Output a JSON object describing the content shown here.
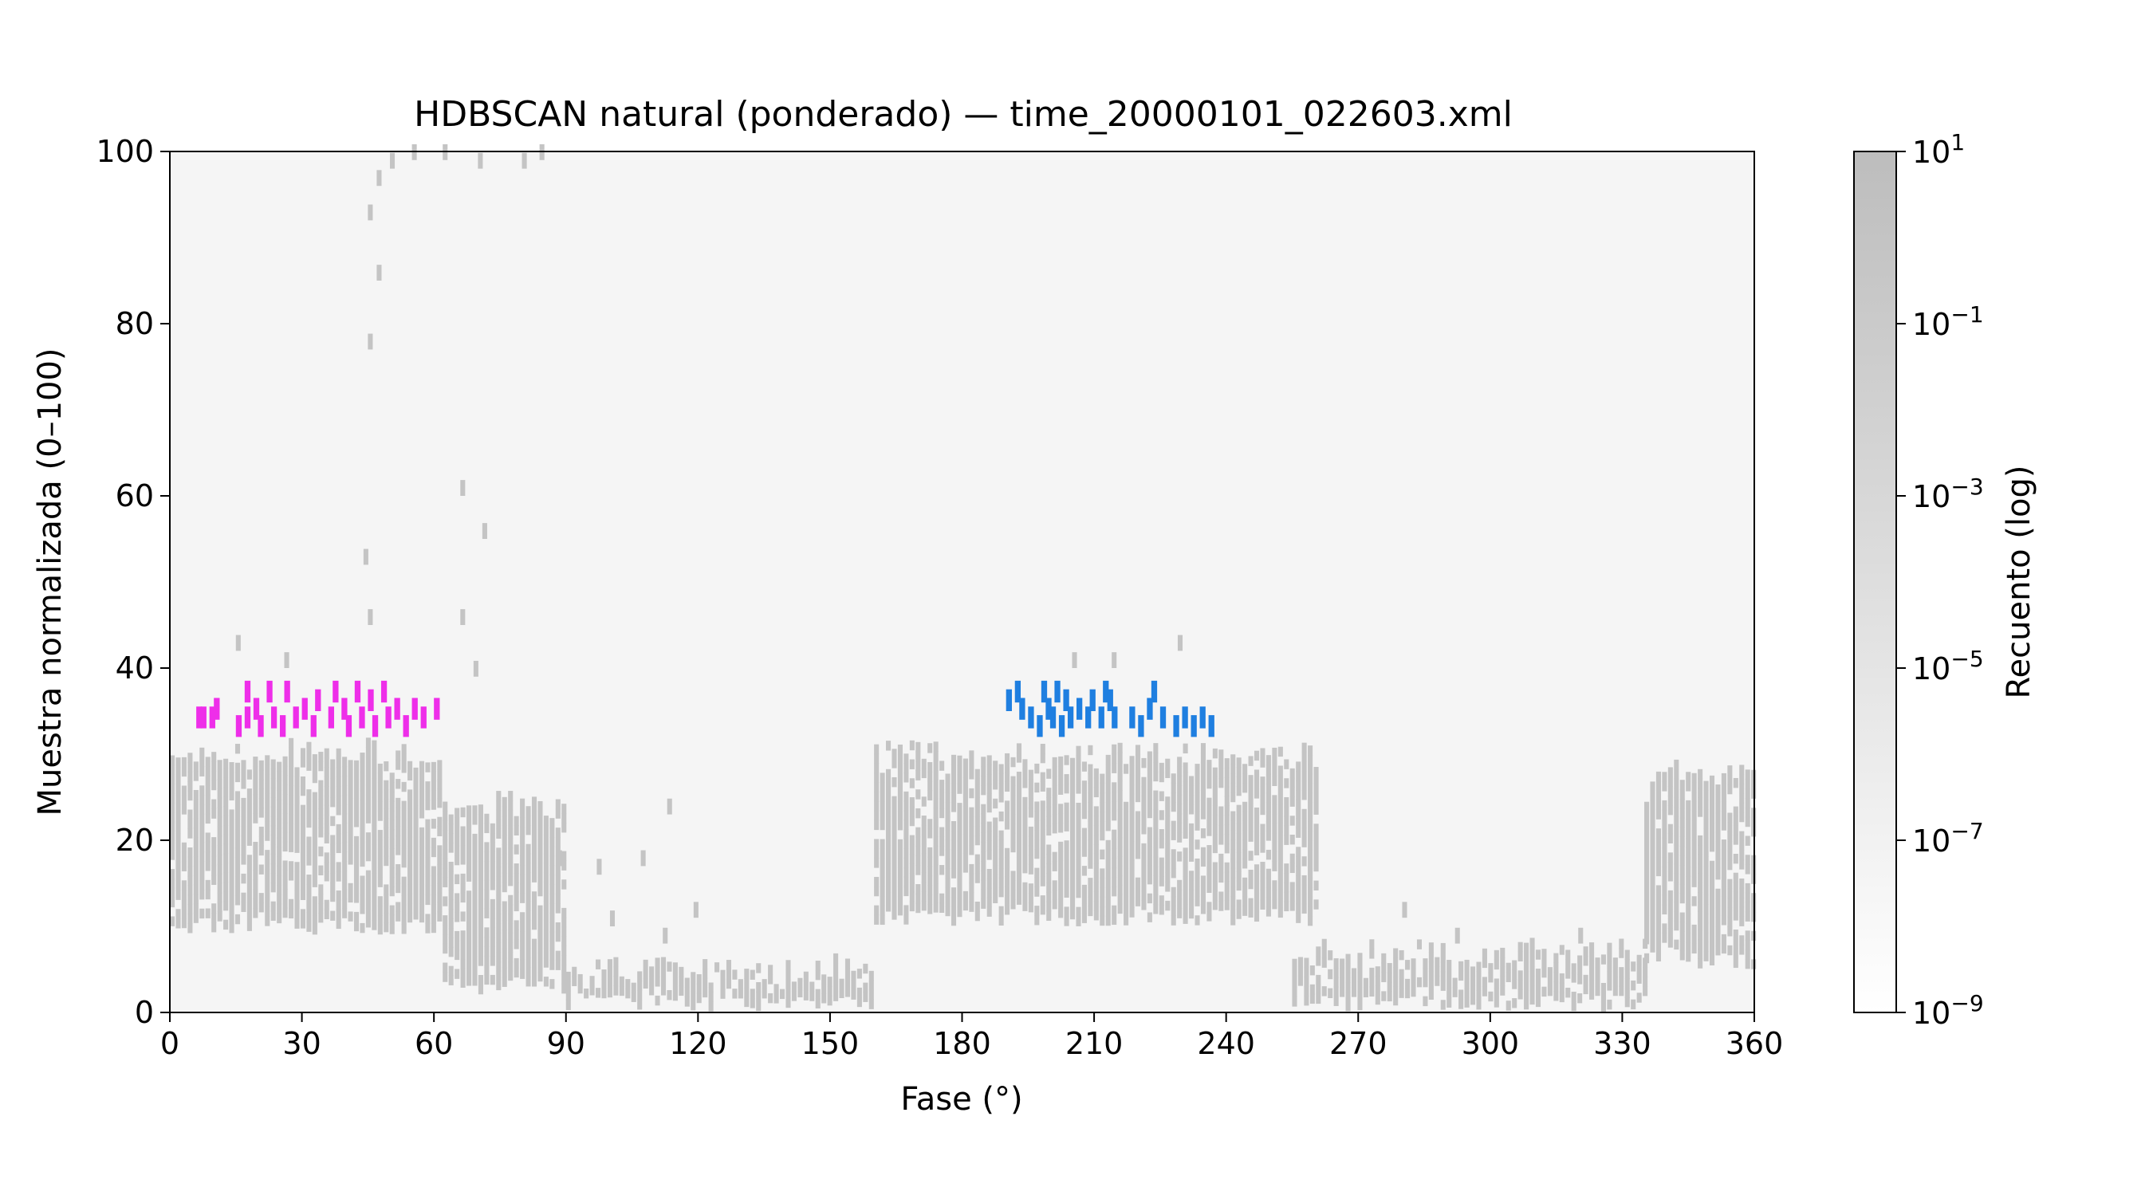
{
  "chart_data": {
    "type": "heatmap",
    "title": "HDBSCAN natural (ponderado) — time_20000101_022603.xml",
    "xlabel": "Fase (°)",
    "ylabel": "Muestra normalizada (0–100)",
    "xlim": [
      0,
      360
    ],
    "ylim": [
      0,
      100
    ],
    "xticks": [
      0,
      30,
      60,
      90,
      120,
      150,
      180,
      210,
      240,
      270,
      300,
      330,
      360
    ],
    "yticks": [
      0,
      20,
      40,
      60,
      80,
      100
    ],
    "grid": false,
    "background_color": "#f5f5f5",
    "cell_color": "#c4c4c4",
    "colorbar": {
      "label": "Recuento (log)",
      "scale": "log",
      "range": [
        1e-09,
        10
      ],
      "tick_exponents": [
        1,
        -1,
        -3,
        -5,
        -7,
        -9
      ],
      "tick_base": "10",
      "color_low": "#ffffff",
      "color_high": "#bdbdbd"
    },
    "background_density": {
      "description_free_bands": [
        {
          "x_from": 0,
          "x_to": 62,
          "y_from": 9,
          "y_to": 31
        },
        {
          "x_from": 62,
          "x_to": 90,
          "y_from": 2,
          "y_to": 25
        },
        {
          "x_from": 90,
          "x_to": 160,
          "y_from": 0,
          "y_to": 6
        },
        {
          "x_from": 160,
          "x_to": 260,
          "y_from": 10,
          "y_to": 31
        },
        {
          "x_from": 255,
          "x_to": 335,
          "y_from": 0,
          "y_to": 8
        },
        {
          "x_from": 335,
          "x_to": 360,
          "y_from": 5,
          "y_to": 29
        }
      ],
      "outliers": [
        {
          "x": 45,
          "y": 77
        },
        {
          "x": 45,
          "y": 92
        },
        {
          "x": 47,
          "y": 85
        },
        {
          "x": 47,
          "y": 96
        },
        {
          "x": 50,
          "y": 98
        },
        {
          "x": 55,
          "y": 99
        },
        {
          "x": 62,
          "y": 99
        },
        {
          "x": 70,
          "y": 98
        },
        {
          "x": 80,
          "y": 98
        },
        {
          "x": 84,
          "y": 99
        },
        {
          "x": 66,
          "y": 60
        },
        {
          "x": 71,
          "y": 55
        },
        {
          "x": 44,
          "y": 52
        },
        {
          "x": 45,
          "y": 45
        },
        {
          "x": 66,
          "y": 45
        },
        {
          "x": 69,
          "y": 39
        },
        {
          "x": 15,
          "y": 42
        },
        {
          "x": 26,
          "y": 40
        },
        {
          "x": 205,
          "y": 40
        },
        {
          "x": 214,
          "y": 40
        },
        {
          "x": 229,
          "y": 42
        },
        {
          "x": 113,
          "y": 23
        },
        {
          "x": 88,
          "y": 17
        },
        {
          "x": 97,
          "y": 16
        },
        {
          "x": 107,
          "y": 17
        },
        {
          "x": 119,
          "y": 11
        },
        {
          "x": 280,
          "y": 11
        },
        {
          "x": 292,
          "y": 8
        },
        {
          "x": 320,
          "y": 8
        },
        {
          "x": 100,
          "y": 10
        },
        {
          "x": 112,
          "y": 8
        }
      ]
    },
    "clusters": [
      {
        "color": "#ee2ee9",
        "points": [
          {
            "x": 6,
            "y": 33
          },
          {
            "x": 7,
            "y": 33
          },
          {
            "x": 9,
            "y": 33
          },
          {
            "x": 10,
            "y": 34
          },
          {
            "x": 15,
            "y": 32
          },
          {
            "x": 17,
            "y": 33
          },
          {
            "x": 17,
            "y": 36
          },
          {
            "x": 19,
            "y": 34
          },
          {
            "x": 20,
            "y": 32
          },
          {
            "x": 22,
            "y": 36
          },
          {
            "x": 23,
            "y": 33
          },
          {
            "x": 25,
            "y": 32
          },
          {
            "x": 26,
            "y": 36
          },
          {
            "x": 28,
            "y": 33
          },
          {
            "x": 30,
            "y": 34
          },
          {
            "x": 32,
            "y": 32
          },
          {
            "x": 33,
            "y": 35
          },
          {
            "x": 36,
            "y": 33
          },
          {
            "x": 37,
            "y": 36
          },
          {
            "x": 39,
            "y": 34
          },
          {
            "x": 40,
            "y": 32
          },
          {
            "x": 42,
            "y": 36
          },
          {
            "x": 43,
            "y": 33
          },
          {
            "x": 45,
            "y": 35
          },
          {
            "x": 46,
            "y": 32
          },
          {
            "x": 48,
            "y": 36
          },
          {
            "x": 49,
            "y": 33
          },
          {
            "x": 51,
            "y": 34
          },
          {
            "x": 53,
            "y": 32
          },
          {
            "x": 55,
            "y": 34
          },
          {
            "x": 57,
            "y": 33
          },
          {
            "x": 60,
            "y": 34
          }
        ]
      },
      {
        "color": "#1f7fe0",
        "points": [
          {
            "x": 190,
            "y": 35
          },
          {
            "x": 192,
            "y": 36
          },
          {
            "x": 193,
            "y": 34
          },
          {
            "x": 195,
            "y": 33
          },
          {
            "x": 197,
            "y": 32
          },
          {
            "x": 198,
            "y": 36
          },
          {
            "x": 199,
            "y": 34
          },
          {
            "x": 200,
            "y": 33
          },
          {
            "x": 201,
            "y": 36
          },
          {
            "x": 202,
            "y": 32
          },
          {
            "x": 203,
            "y": 35
          },
          {
            "x": 204,
            "y": 33
          },
          {
            "x": 206,
            "y": 34
          },
          {
            "x": 208,
            "y": 33
          },
          {
            "x": 209,
            "y": 35
          },
          {
            "x": 211,
            "y": 33
          },
          {
            "x": 212,
            "y": 36
          },
          {
            "x": 213,
            "y": 35
          },
          {
            "x": 214,
            "y": 33
          },
          {
            "x": 218,
            "y": 33
          },
          {
            "x": 220,
            "y": 32
          },
          {
            "x": 222,
            "y": 34
          },
          {
            "x": 223,
            "y": 36
          },
          {
            "x": 225,
            "y": 33
          },
          {
            "x": 228,
            "y": 32
          },
          {
            "x": 230,
            "y": 33
          },
          {
            "x": 232,
            "y": 32
          },
          {
            "x": 234,
            "y": 33
          },
          {
            "x": 236,
            "y": 32
          }
        ]
      }
    ]
  }
}
